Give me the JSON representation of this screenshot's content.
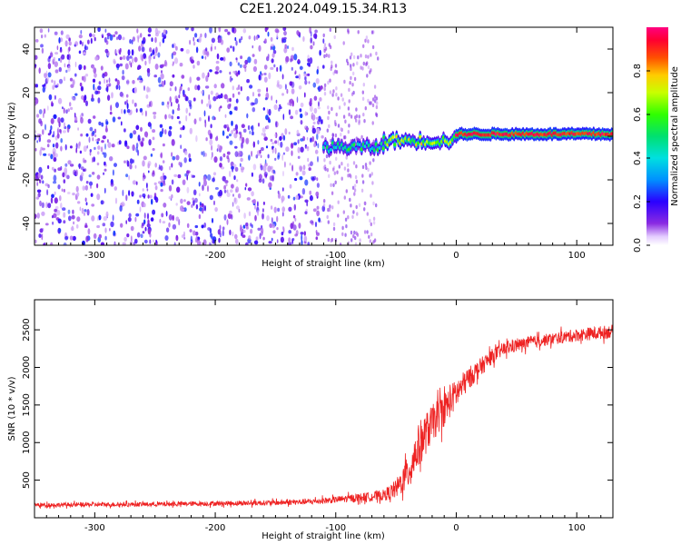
{
  "figure_title": "C2E1.2024.049.15.34.R13",
  "chart_data": [
    {
      "type": "heatmap",
      "xlabel": "Height of straight line (km)",
      "ylabel": "Frequency (Hz)",
      "xlim": [
        -350,
        130
      ],
      "ylim": [
        -50,
        50
      ],
      "xticks": [
        -300,
        -200,
        -100,
        0,
        100
      ],
      "xtick_labels": [
        "-300",
        "-200",
        "-100",
        "0",
        "100"
      ],
      "yticks": [
        -40,
        -20,
        0,
        20,
        40
      ],
      "ytick_labels": [
        "-40",
        "-20",
        "0",
        "20",
        "40"
      ],
      "colorbar": {
        "label": "Normalized spectral amplitude",
        "range": [
          0,
          1
        ],
        "ticks": [
          0.0,
          0.2,
          0.4,
          0.6,
          0.8
        ],
        "tick_labels": [
          "0.0",
          "0.2",
          "0.4",
          "0.6",
          "0.8"
        ]
      },
      "regions": [
        {
          "x_range": [
            -350,
            -110
          ],
          "description": "broadband noise",
          "amplitude": [
            0.05,
            0.25
          ]
        },
        {
          "x_range": [
            -110,
            -60
          ],
          "center_freq_hz": -5,
          "amplitude": [
            0.3,
            0.6
          ]
        },
        {
          "x_range": [
            -60,
            0
          ],
          "center_freq_hz": -2,
          "amplitude": [
            0.5,
            0.8
          ]
        },
        {
          "x_range": [
            0,
            130
          ],
          "center_freq_hz": 1,
          "amplitude": [
            0.85,
            1.0
          ]
        }
      ],
      "grid": false
    },
    {
      "type": "line",
      "xlabel": "Height of straight line (km)",
      "ylabel": "SNR (10 * v/v)",
      "xlim": [
        -350,
        130
      ],
      "ylim": [
        0,
        2900
      ],
      "xticks": [
        -300,
        -200,
        -100,
        0,
        100
      ],
      "xtick_labels": [
        "-300",
        "-200",
        "-100",
        "0",
        "100"
      ],
      "yticks": [
        500,
        1000,
        1500,
        2000,
        2500
      ],
      "ytick_labels": [
        "500",
        "1000",
        "1500",
        "2000",
        "2500"
      ],
      "series": [
        {
          "color": "#ee2222",
          "x": [
            -350,
            -300,
            -250,
            -200,
            -150,
            -120,
            -100,
            -80,
            -60,
            -50,
            -40,
            -30,
            -20,
            -10,
            0,
            10,
            20,
            30,
            40,
            60,
            80,
            100,
            130
          ],
          "y": [
            170,
            175,
            180,
            190,
            200,
            215,
            240,
            270,
            300,
            380,
            600,
            1000,
            1250,
            1450,
            1650,
            1850,
            2000,
            2150,
            2250,
            2330,
            2380,
            2430,
            2480
          ],
          "spread": [
            60,
            60,
            60,
            65,
            70,
            80,
            90,
            110,
            150,
            250,
            450,
            600,
            500,
            450,
            400,
            300,
            250,
            200,
            180,
            160,
            160,
            170,
            180
          ]
        }
      ],
      "grid": false
    }
  ]
}
